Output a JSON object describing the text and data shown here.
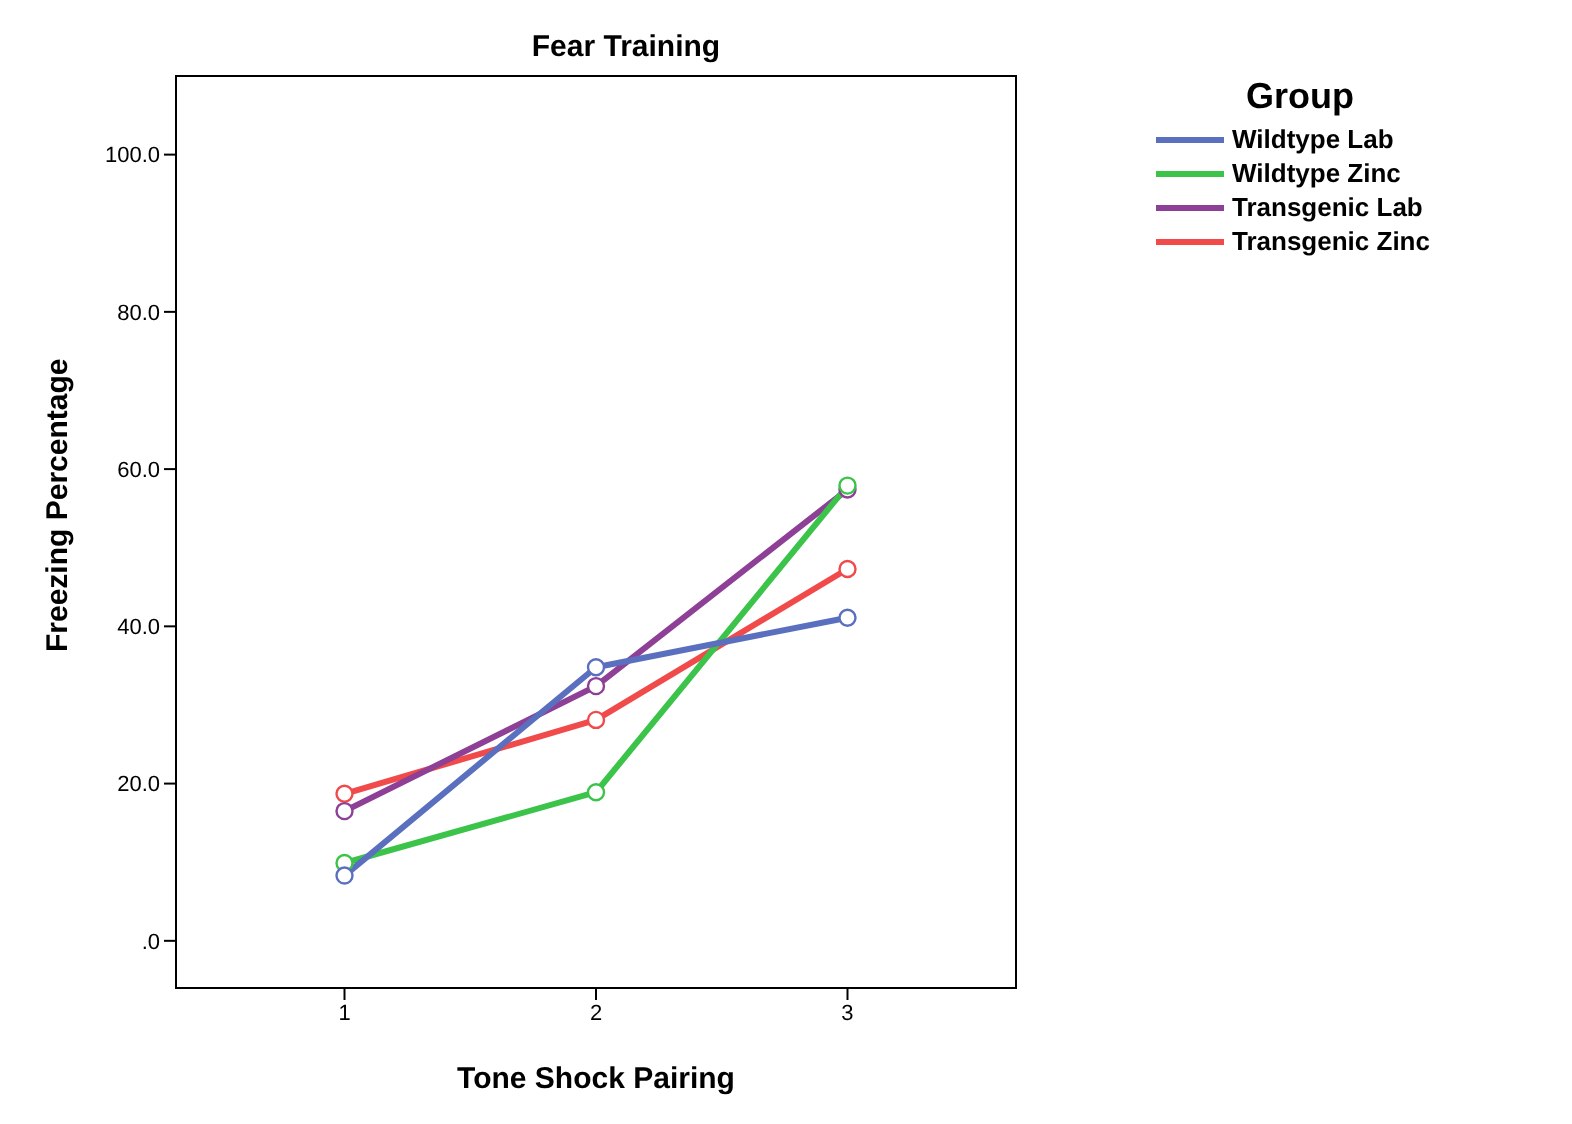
{
  "chart_data": {
    "type": "line",
    "title": "Fear Training",
    "xlabel": "Tone Shock Pairing",
    "ylabel": "Freezing Percentage",
    "legend_title": "Group",
    "x": [
      1,
      2,
      3
    ],
    "series": [
      {
        "name": "Wildtype Lab",
        "color": "#5b6fbf",
        "values": [
          8.3,
          34.8,
          41.1
        ]
      },
      {
        "name": "Wildtype Zinc",
        "color": "#3cc44a",
        "values": [
          9.9,
          18.9,
          57.9
        ]
      },
      {
        "name": "Transgenic Lab",
        "color": "#8e3f96",
        "values": [
          16.5,
          32.4,
          57.4
        ]
      },
      {
        "name": "Transgenic Zinc",
        "color": "#f04a4a",
        "values": [
          18.7,
          28.1,
          47.3
        ]
      }
    ],
    "xlim": [
      0.33,
      3.67
    ],
    "xticks": [
      1,
      2,
      3
    ],
    "ylim": [
      -6,
      110
    ],
    "yticks": [
      {
        "value": 0,
        "label": ".0"
      },
      {
        "value": 20,
        "label": "20.0"
      },
      {
        "value": 40,
        "label": "40.0"
      },
      {
        "value": 60,
        "label": "60.0"
      },
      {
        "value": 80,
        "label": "80.0"
      },
      {
        "value": 100,
        "label": "100.0"
      }
    ],
    "marker": "circle",
    "line_style": "solid",
    "legend": "top right",
    "grid": false
  }
}
